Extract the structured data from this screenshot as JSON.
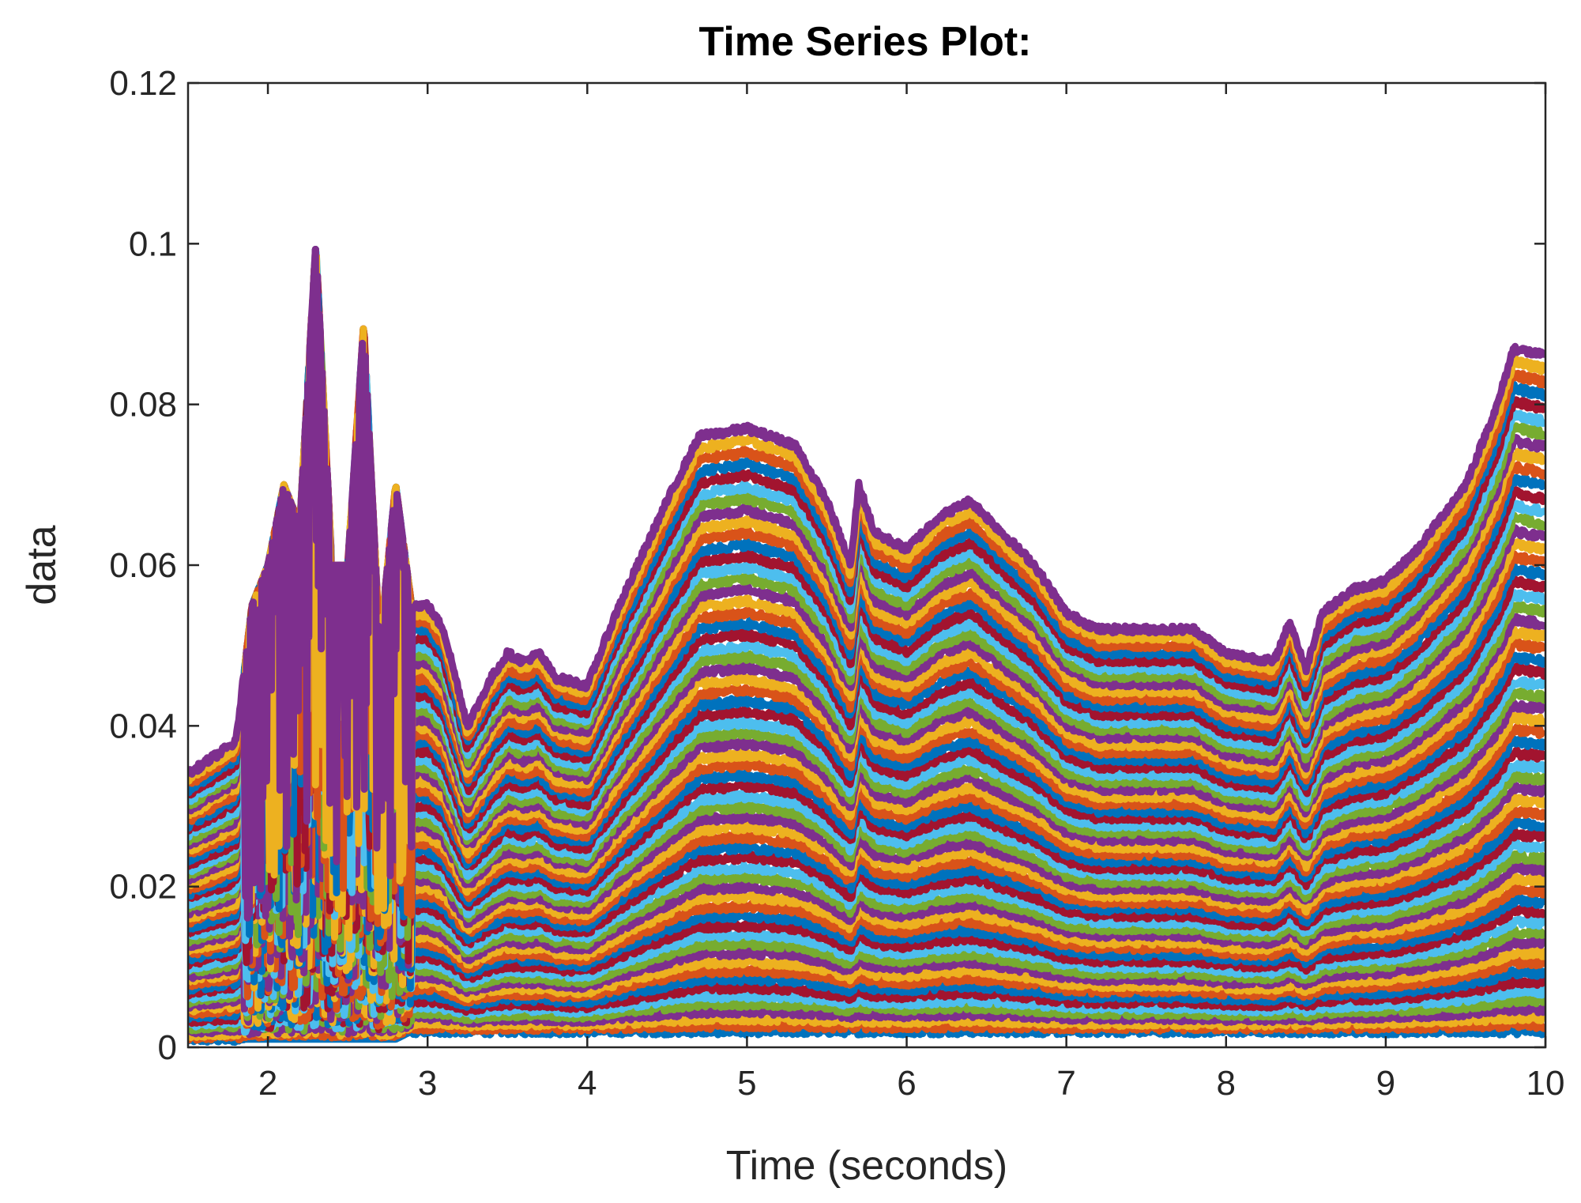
{
  "chart_data": {
    "type": "line",
    "title": "Time Series Plot:",
    "xlabel": "Time (seconds)",
    "ylabel": "data",
    "xlim": [
      1.5,
      10
    ],
    "ylim": [
      0,
      0.12
    ],
    "xticks": [
      2,
      3,
      4,
      5,
      6,
      7,
      8,
      9,
      10
    ],
    "xtick_labels": [
      "2",
      "3",
      "4",
      "5",
      "6",
      "7",
      "8",
      "9",
      "10"
    ],
    "yticks": [
      0,
      0.02,
      0.04,
      0.06,
      0.08,
      0.1,
      0.12
    ],
    "ytick_labels": [
      "0",
      "0.02",
      "0.04",
      "0.06",
      "0.08",
      "0.1",
      "0.12"
    ],
    "grid": false,
    "legend": "none",
    "color_order": [
      "#0072BD",
      "#D95319",
      "#EDB120",
      "#7E2F8E",
      "#77AC30",
      "#4DBEEE",
      "#A2142F"
    ],
    "envelope": {
      "description_x": [
        1.5,
        1.8,
        1.9,
        2.0,
        2.1,
        2.2,
        2.3,
        2.4,
        2.5,
        2.6,
        2.7,
        2.8,
        2.9,
        3.0,
        3.1,
        3.25,
        3.4,
        3.5,
        3.6,
        3.7,
        3.8,
        4.0,
        4.2,
        4.5,
        4.7,
        5.0,
        5.3,
        5.5,
        5.65,
        5.7,
        5.8,
        6.0,
        6.2,
        6.4,
        6.6,
        6.8,
        7.0,
        7.2,
        7.5,
        7.8,
        8.0,
        8.3,
        8.4,
        8.5,
        8.6,
        8.8,
        9.0,
        9.2,
        9.5,
        9.7,
        9.8,
        10.0
      ],
      "upper": [
        0.034,
        0.038,
        0.055,
        0.06,
        0.07,
        0.065,
        0.1,
        0.06,
        0.06,
        0.09,
        0.05,
        0.07,
        0.055,
        0.055,
        0.052,
        0.04,
        0.046,
        0.049,
        0.048,
        0.049,
        0.046,
        0.045,
        0.055,
        0.068,
        0.076,
        0.077,
        0.075,
        0.068,
        0.06,
        0.07,
        0.064,
        0.062,
        0.066,
        0.068,
        0.064,
        0.06,
        0.054,
        0.052,
        0.052,
        0.052,
        0.049,
        0.048,
        0.053,
        0.047,
        0.054,
        0.057,
        0.058,
        0.062,
        0.07,
        0.08,
        0.087,
        0.086
      ],
      "lower": [
        0.001,
        0.001,
        0.001,
        0.001,
        0.001,
        0.001,
        0.001,
        0.001,
        0.001,
        0.001,
        0.001,
        0.001,
        0.002,
        0.002,
        0.002,
        0.002,
        0.002,
        0.002,
        0.002,
        0.002,
        0.002,
        0.002,
        0.002,
        0.002,
        0.002,
        0.002,
        0.002,
        0.002,
        0.002,
        0.002,
        0.002,
        0.002,
        0.002,
        0.002,
        0.002,
        0.002,
        0.002,
        0.002,
        0.002,
        0.002,
        0.002,
        0.002,
        0.002,
        0.002,
        0.002,
        0.002,
        0.002,
        0.002,
        0.002,
        0.002,
        0.002,
        0.002
      ]
    },
    "series_count": 60
  }
}
